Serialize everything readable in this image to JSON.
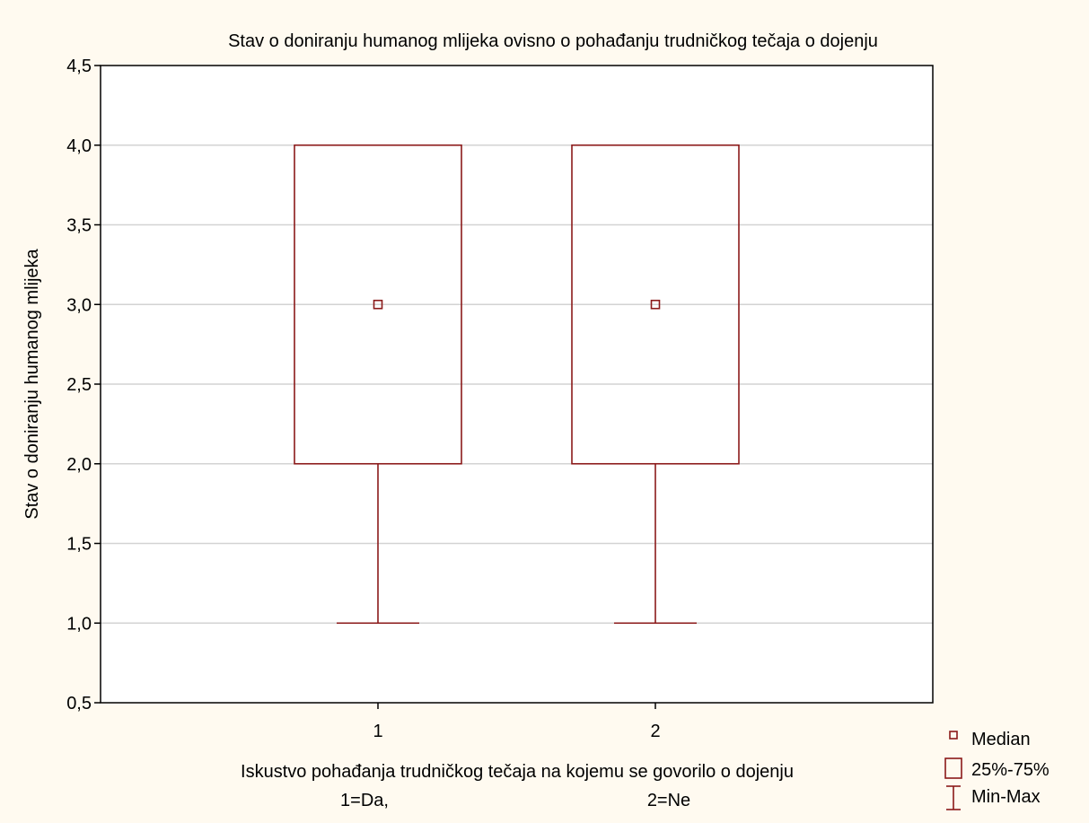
{
  "chart_data": {
    "type": "boxplot",
    "title": "Stav o doniranju humanog mlijeka ovisno o pohađanju trudničkog tečaja o dojenju",
    "ylabel": "Stav o doniranju humanog mlijeka",
    "xlabel_line1": "Iskustvo pohađanja trudničkog tečaja na kojemu se govorilo o dojenju",
    "xlabel_line2_left": "1=Da,",
    "xlabel_line2_right": "2=Ne",
    "ylim": [
      0.5,
      4.5
    ],
    "yticks": [
      {
        "value": 0.5,
        "label": "0,5"
      },
      {
        "value": 1.0,
        "label": "1,0"
      },
      {
        "value": 1.5,
        "label": "1,5"
      },
      {
        "value": 2.0,
        "label": "2,0"
      },
      {
        "value": 2.5,
        "label": "2,5"
      },
      {
        "value": 3.0,
        "label": "3,0"
      },
      {
        "value": 3.5,
        "label": "3,5"
      },
      {
        "value": 4.0,
        "label": "4,0"
      },
      {
        "value": 4.5,
        "label": "4,5"
      }
    ],
    "grid": true,
    "categories": [
      "1",
      "2"
    ],
    "boxes": [
      {
        "category": "1",
        "min": 1.0,
        "q1": 2.0,
        "median": 3.0,
        "q3": 4.0,
        "max": 4.0
      },
      {
        "category": "2",
        "min": 1.0,
        "q1": 2.0,
        "median": 3.0,
        "q3": 4.0,
        "max": 4.0
      }
    ],
    "legend": {
      "placement": "bottom-right",
      "items": [
        {
          "symbol": "median",
          "label": "Median"
        },
        {
          "symbol": "box",
          "label": "25%-75%"
        },
        {
          "symbol": "whisker",
          "label": "Min-Max"
        }
      ]
    },
    "colors": {
      "box": "#8B1A1A",
      "grid": "#D3D3D3",
      "background": "#FFFAF0",
      "plot_background": "#FFFFFF",
      "axis": "#000000"
    }
  }
}
